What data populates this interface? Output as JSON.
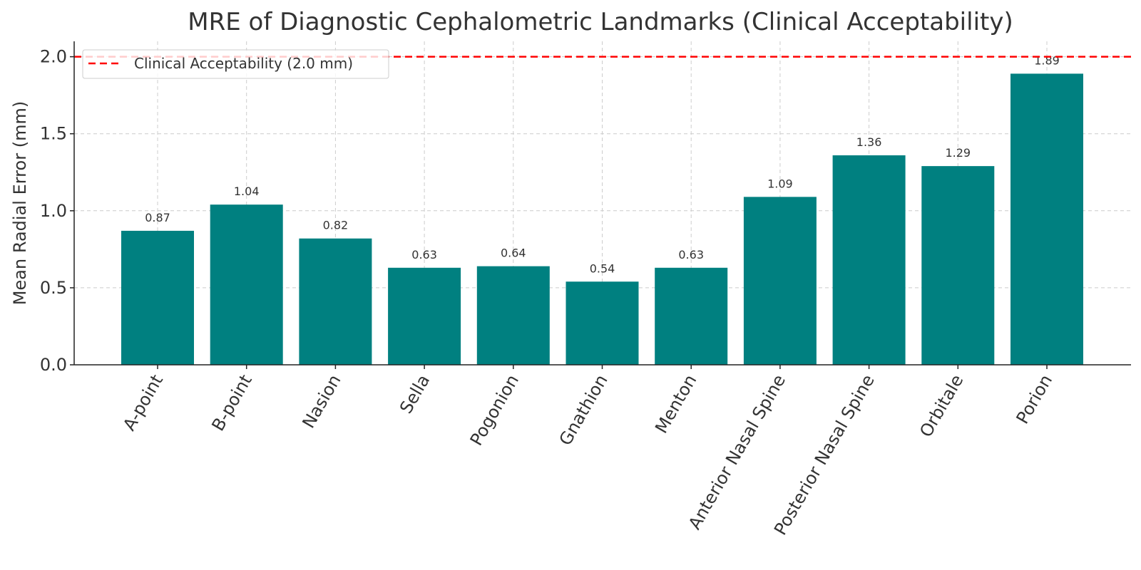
{
  "chart_data": {
    "type": "bar",
    "title": "MRE of Diagnostic Cephalometric Landmarks (Clinical Acceptability)",
    "xlabel": "",
    "ylabel": "Mean Radial Error (mm)",
    "ylim": [
      0,
      2.1
    ],
    "yticks": [
      "0.0",
      "0.5",
      "1.0",
      "1.5",
      "2.0"
    ],
    "grid": true,
    "categories": [
      "A-point",
      "B-point",
      "Nasion",
      "Sella",
      "Pogonion",
      "Gnathion",
      "Menton",
      "Anterior Nasal Spine",
      "Posterior Nasal Spine",
      "Orbitale",
      "Porion"
    ],
    "values": [
      0.87,
      1.04,
      0.82,
      0.63,
      0.64,
      0.54,
      0.63,
      1.09,
      1.36,
      1.29,
      1.89
    ],
    "value_labels": [
      "0.87",
      "1.04",
      "0.82",
      "0.63",
      "0.64",
      "0.54",
      "0.63",
      "1.09",
      "1.36",
      "1.29",
      "1.89"
    ],
    "bar_color": "#008080",
    "reference_line": {
      "value": 2.0,
      "label": "Clinical Acceptability (2.0 mm)",
      "color": "#ff0000"
    },
    "legend": {
      "position": "top-left",
      "entries": [
        "Clinical Acceptability (2.0 mm)"
      ]
    }
  }
}
